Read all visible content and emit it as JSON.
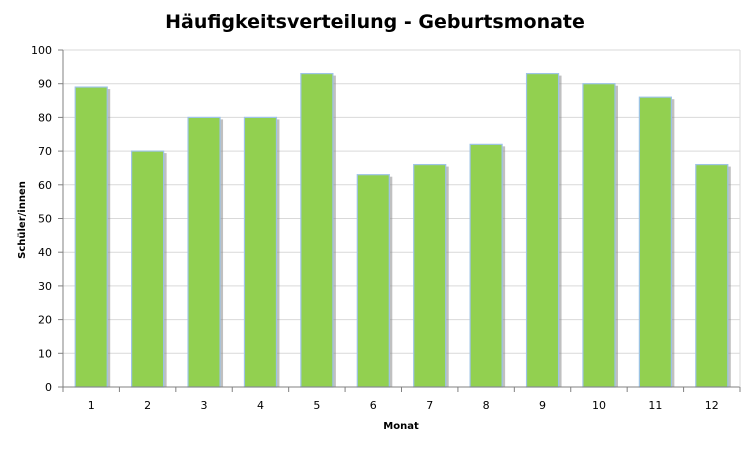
{
  "chart_data": {
    "type": "bar",
    "title": "Häufigkeitsverteilung - Geburtsmonate",
    "xlabel": "Monat",
    "ylabel": "Schüler/innen",
    "categories": [
      "1",
      "2",
      "3",
      "4",
      "5",
      "6",
      "7",
      "8",
      "9",
      "10",
      "11",
      "12"
    ],
    "values": [
      89,
      70,
      80,
      80,
      93,
      63,
      66,
      72,
      93,
      90,
      86,
      66
    ],
    "ylim": [
      0,
      100
    ],
    "yticks": [
      0,
      10,
      20,
      30,
      40,
      50,
      60,
      70,
      80,
      90,
      100
    ],
    "grid": true,
    "legend": "none",
    "colors": {
      "bar_fill": "#92d050",
      "bar_edge": "#9dc3e6",
      "bar_shadow": "#8c8c8c",
      "grid": "#d9d9d9",
      "axis": "#808080"
    }
  }
}
